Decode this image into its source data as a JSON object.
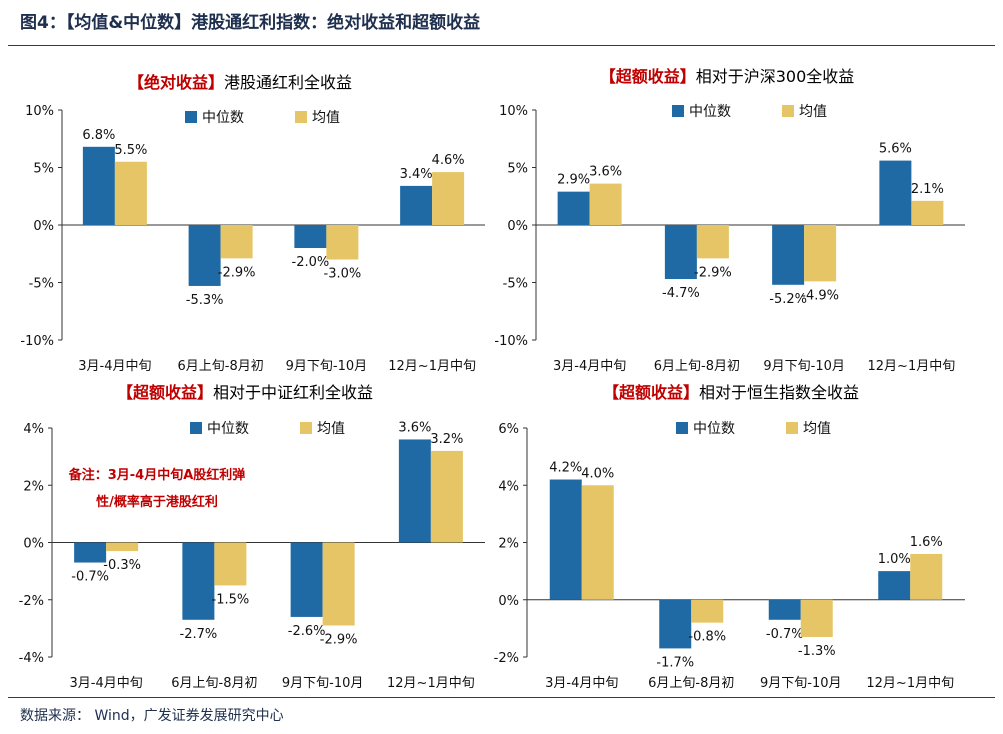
{
  "figure": {
    "title": "图4：【均值&中位数】港股通红利指数：绝对收益和超额收益",
    "source": "数据来源：    Wind，广发证券发展研究中心"
  },
  "colors": {
    "median": "#1f6aa5",
    "mean": "#e6c566"
  },
  "chart_data": [
    {
      "type": "bar",
      "title_prefix": "【绝对收益】",
      "title_suffix": "港股通红利全收益",
      "categories": [
        "3月-4月中旬",
        "6月上旬-8月初",
        "9月下旬-10月",
        "12月~1月中旬"
      ],
      "series": [
        {
          "name": "中位数",
          "values": [
            6.8,
            -5.3,
            -2.0,
            3.4
          ],
          "labels": [
            "6.8%",
            "-5.3%",
            "-2.0%",
            "3.4%"
          ]
        },
        {
          "name": "均值",
          "values": [
            5.5,
            -2.9,
            -3.0,
            4.6
          ],
          "labels": [
            "5.5%",
            "-2.9%",
            "-3.0%",
            "4.6%"
          ]
        }
      ],
      "ylim": [
        -10,
        10
      ],
      "yticks": [
        10,
        5,
        0,
        -5,
        -10
      ],
      "ytick_labels": [
        "10%",
        "5%",
        "0%",
        "-5%",
        "-10%"
      ],
      "note": []
    },
    {
      "type": "bar",
      "title_prefix": "【超额收益】",
      "title_suffix": "相对于沪深300全收益",
      "categories": [
        "3月-4月中旬",
        "6月上旬-8月初",
        "9月下旬-10月",
        "12月~1月中旬"
      ],
      "series": [
        {
          "name": "中位数",
          "values": [
            2.9,
            -4.7,
            -5.2,
            5.6
          ],
          "labels": [
            "2.9%",
            "-4.7%",
            "-5.2%",
            "5.6%"
          ]
        },
        {
          "name": "均值",
          "values": [
            3.6,
            -2.9,
            -4.9,
            2.1
          ],
          "labels": [
            "3.6%",
            "-2.9%",
            "-4.9%",
            "2.1%"
          ]
        }
      ],
      "ylim": [
        -10,
        10
      ],
      "yticks": [
        10,
        5,
        0,
        -5,
        -10
      ],
      "ytick_labels": [
        "10%",
        "5%",
        "0%",
        "-5%",
        "-10%"
      ],
      "note": []
    },
    {
      "type": "bar",
      "title_prefix": "【超额收益】",
      "title_suffix": "相对于中证红利全收益",
      "categories": [
        "3月-4月中旬",
        "6月上旬-8月初",
        "9月下旬-10月",
        "12月~1月中旬"
      ],
      "series": [
        {
          "name": "中位数",
          "values": [
            -0.7,
            -2.7,
            -2.6,
            3.6
          ],
          "labels": [
            "-0.7%",
            "-2.7%",
            "-2.6%",
            "3.6%"
          ]
        },
        {
          "name": "均值",
          "values": [
            -0.3,
            -1.5,
            -2.9,
            3.2
          ],
          "labels": [
            "-0.3%",
            "-1.5%",
            "-2.9%",
            "3.2%"
          ]
        }
      ],
      "ylim": [
        -4,
        4
      ],
      "yticks": [
        4,
        2,
        0,
        -2,
        -4
      ],
      "ytick_labels": [
        "4%",
        "2%",
        "0%",
        "-2%",
        "-4%"
      ],
      "note": [
        "备注：3月-4月中旬A股红利弹",
        "性/概率高于港股红利"
      ]
    },
    {
      "type": "bar",
      "title_prefix": "【超额收益】",
      "title_suffix": "相对于恒生指数全收益",
      "categories": [
        "3月-4月中旬",
        "6月上旬-8月初",
        "9月下旬-10月",
        "12月~1月中旬"
      ],
      "series": [
        {
          "name": "中位数",
          "values": [
            4.2,
            -1.7,
            -0.7,
            1.0
          ],
          "labels": [
            "4.2%",
            "-1.7%",
            "-0.7%",
            "1.0%"
          ]
        },
        {
          "name": "均值",
          "values": [
            4.0,
            -0.8,
            -1.3,
            1.6
          ],
          "labels": [
            "4.0%",
            "-0.8%",
            "-1.3%",
            "1.6%"
          ]
        }
      ],
      "ylim": [
        -2,
        6
      ],
      "yticks": [
        6,
        4,
        2,
        0,
        -2
      ],
      "ytick_labels": [
        "6%",
        "4%",
        "2%",
        "0%",
        "-2%"
      ],
      "note": []
    }
  ]
}
